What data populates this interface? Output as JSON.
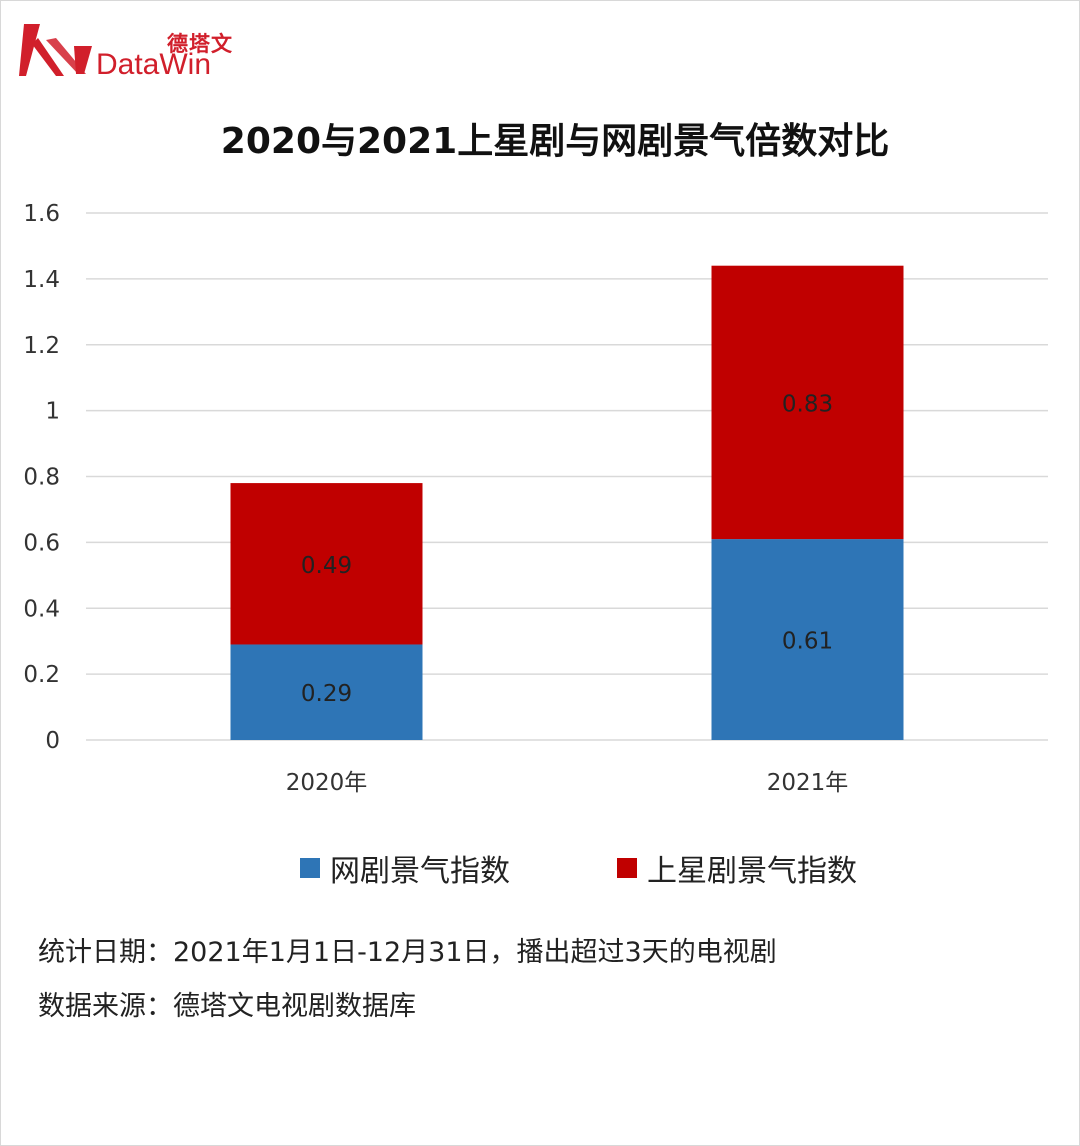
{
  "logo": {
    "text_cn": "德塔文",
    "text_en": "DataWin"
  },
  "colors": {
    "brand": "#d11f2b",
    "series_web": "#2e75b6",
    "series_tv": "#c00000",
    "grid": "#d9d9d9"
  },
  "chart_data": {
    "type": "bar",
    "stacked": true,
    "title": "2020与2021上星剧与网剧景气倍数对比",
    "categories": [
      "2020年",
      "2021年"
    ],
    "series": [
      {
        "name": "网剧景气指数",
        "values": [
          0.29,
          0.61
        ]
      },
      {
        "name": "上星剧景气指数",
        "values": [
          0.49,
          0.83
        ]
      }
    ],
    "y_ticks": [
      "0",
      "0.2",
      "0.4",
      "0.6",
      "0.8",
      "1",
      "1.2",
      "1.4",
      "1.6"
    ],
    "ylim": [
      0,
      1.6
    ],
    "grid": true,
    "legend_position": "bottom"
  },
  "notes": {
    "stat_period": "统计日期：2021年1月1日-12月31日，播出超过3天的电视剧",
    "source": "数据来源：德塔文电视剧数据库"
  }
}
